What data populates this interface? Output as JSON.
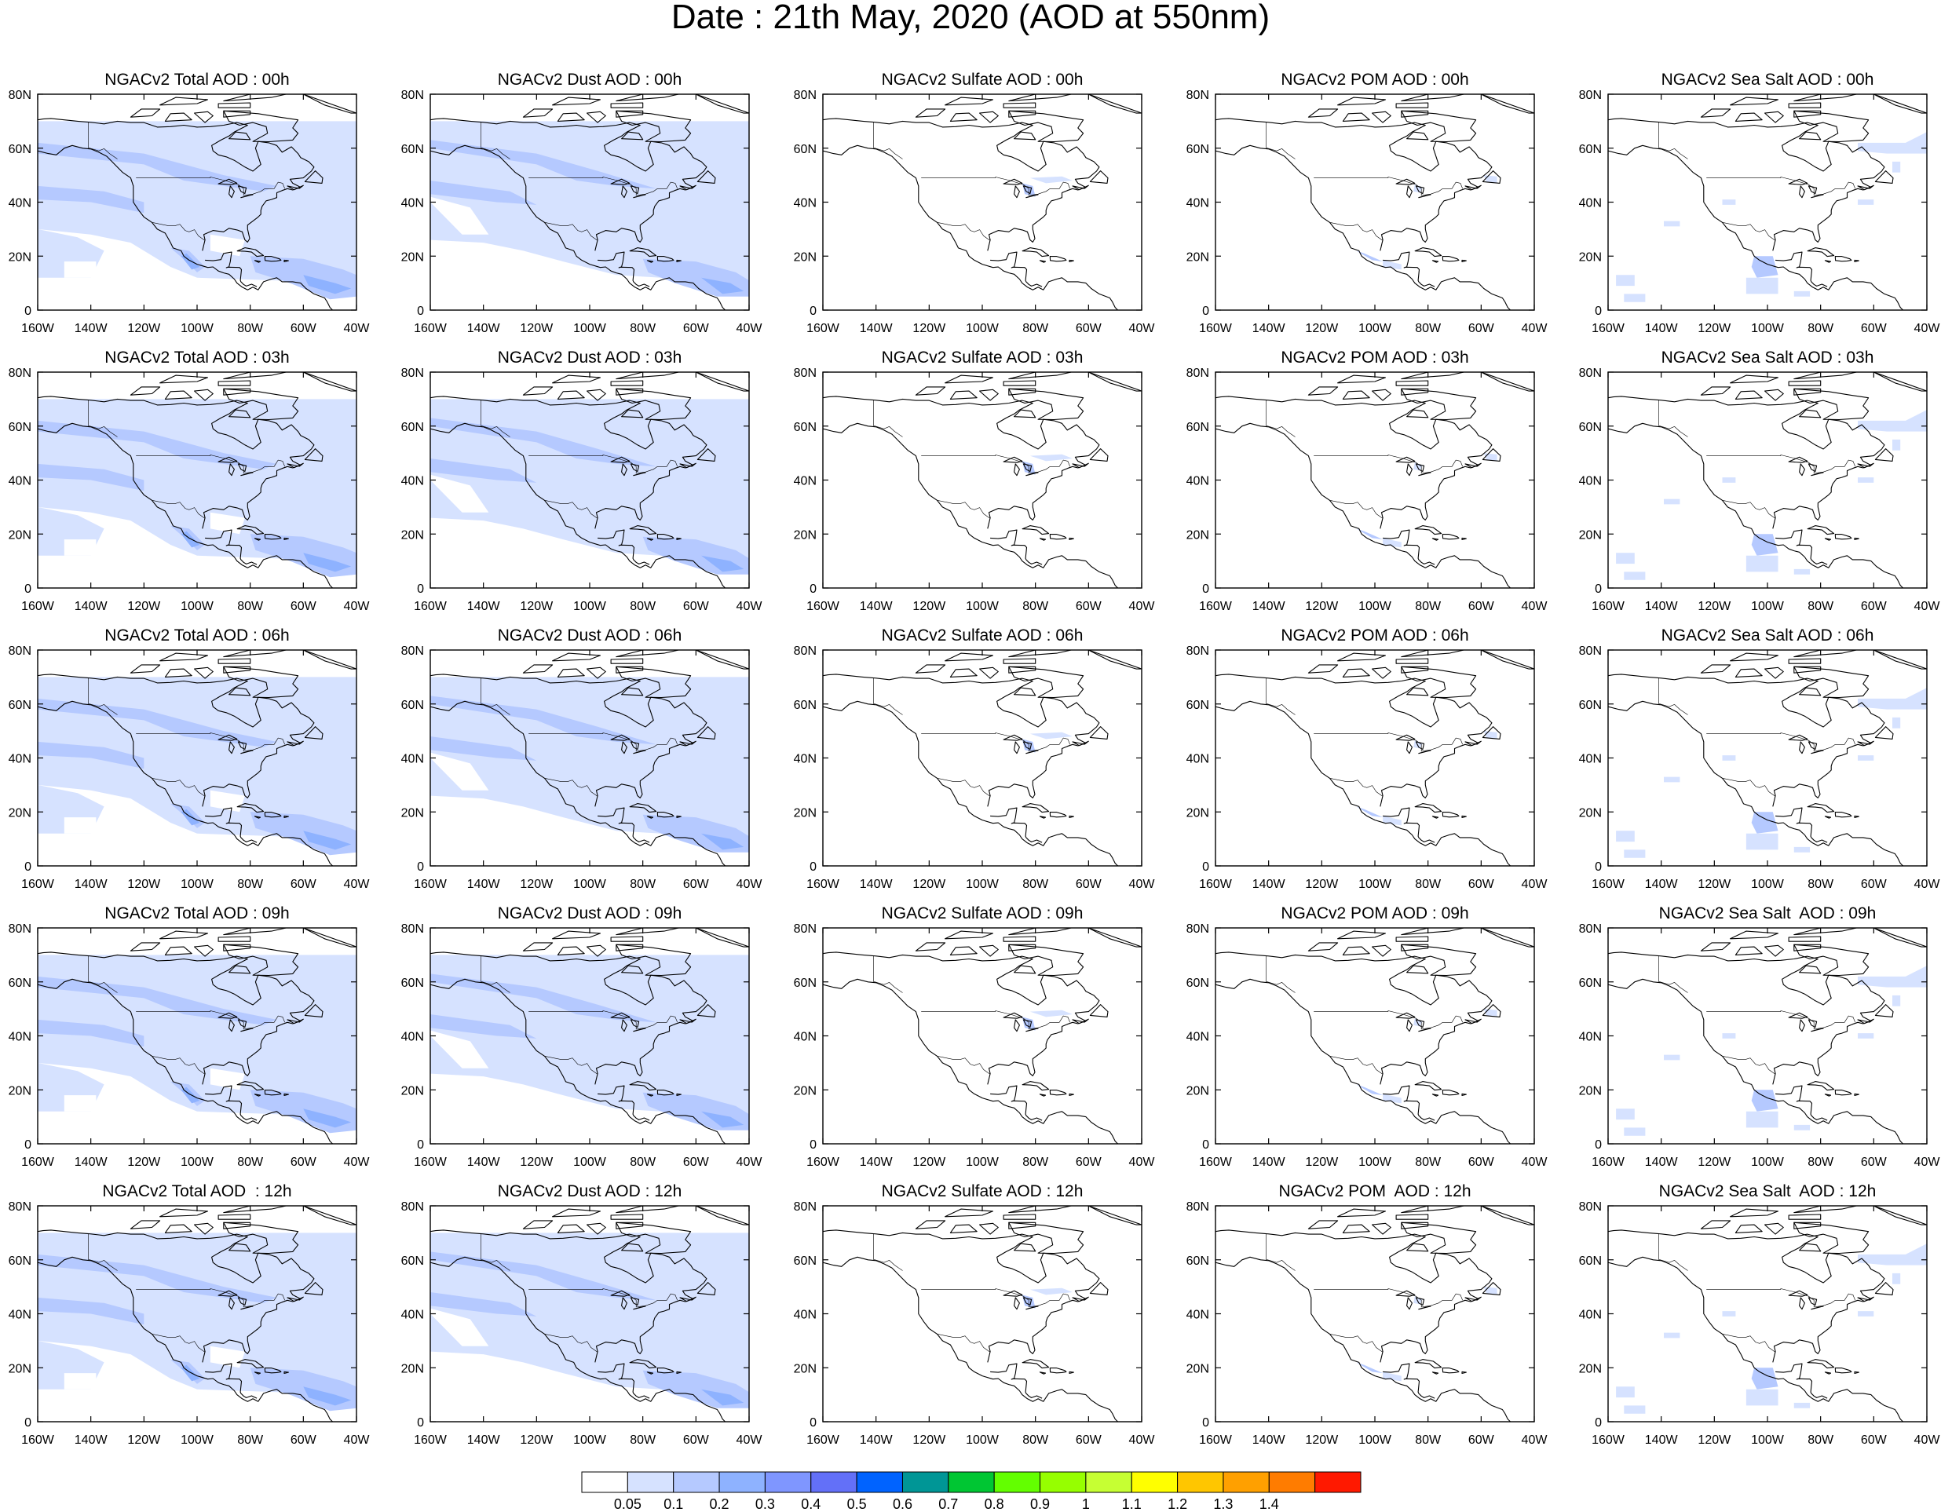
{
  "title": "Date : 21th May, 2020 (AOD at 550nm)",
  "grid": {
    "rows": [
      "00h",
      "03h",
      "06h",
      "09h",
      "12h"
    ],
    "columns": [
      "Total",
      "Dust",
      "Sulfate",
      "POM",
      "Sea Salt"
    ]
  },
  "panels": [
    [
      "NGACv2 Total AOD : 00h",
      "NGACv2 Dust AOD : 00h",
      "NGACv2 Sulfate AOD : 00h",
      "NGACv2 POM AOD : 00h",
      "NGACv2 Sea Salt AOD : 00h"
    ],
    [
      "NGACv2 Total AOD : 03h",
      "NGACv2 Dust AOD : 03h",
      "NGACv2 Sulfate AOD : 03h",
      "NGACv2 POM AOD : 03h",
      "NGACv2 Sea Salt AOD : 03h"
    ],
    [
      "NGACv2 Total AOD : 06h",
      "NGACv2 Dust AOD : 06h",
      "NGACv2 Sulfate AOD : 06h",
      "NGACv2 POM AOD : 06h",
      "NGACv2 Sea Salt AOD : 06h"
    ],
    [
      "NGACv2 Total AOD : 09h",
      "NGACv2 Dust AOD : 09h",
      "NGACv2 Sulfate AOD : 09h",
      "NGACv2 POM AOD : 09h",
      "NGACv2 Sea Salt  AOD : 09h"
    ],
    [
      "NGACv2 Total AOD  : 12h",
      "NGACv2 Dust AOD : 12h",
      "NGACv2 Sulfate AOD : 12h",
      "NGACv2 POM  AOD : 12h",
      "NGACv2 Sea Salt  AOD : 12h"
    ]
  ],
  "axes": {
    "lon_ticks": [
      "160W",
      "140W",
      "120W",
      "100W",
      "80W",
      "60W",
      "40W"
    ],
    "lat_ticks": [
      "80N",
      "60N",
      "40N",
      "20N",
      "0"
    ],
    "lon_range": [
      -160,
      -40
    ],
    "lat_range": [
      0,
      80
    ]
  },
  "colorbar": {
    "colors": [
      "#ffffff",
      "#d6e2ff",
      "#b5c9ff",
      "#8eb2ff",
      "#7f96ff",
      "#6370f8",
      "#0063ff",
      "#009696",
      "#00c633",
      "#63ff00",
      "#96ff00",
      "#c6ff33",
      "#ffff00",
      "#ffc600",
      "#ffa000",
      "#ff7c00",
      "#ff1900"
    ],
    "labels": [
      "0.05",
      "0.1",
      "0.2",
      "0.3",
      "0.4",
      "0.5",
      "0.6",
      "0.7",
      "0.8",
      "0.9",
      "1",
      "1.1",
      "1.2",
      "1.3",
      "1.4"
    ]
  }
}
